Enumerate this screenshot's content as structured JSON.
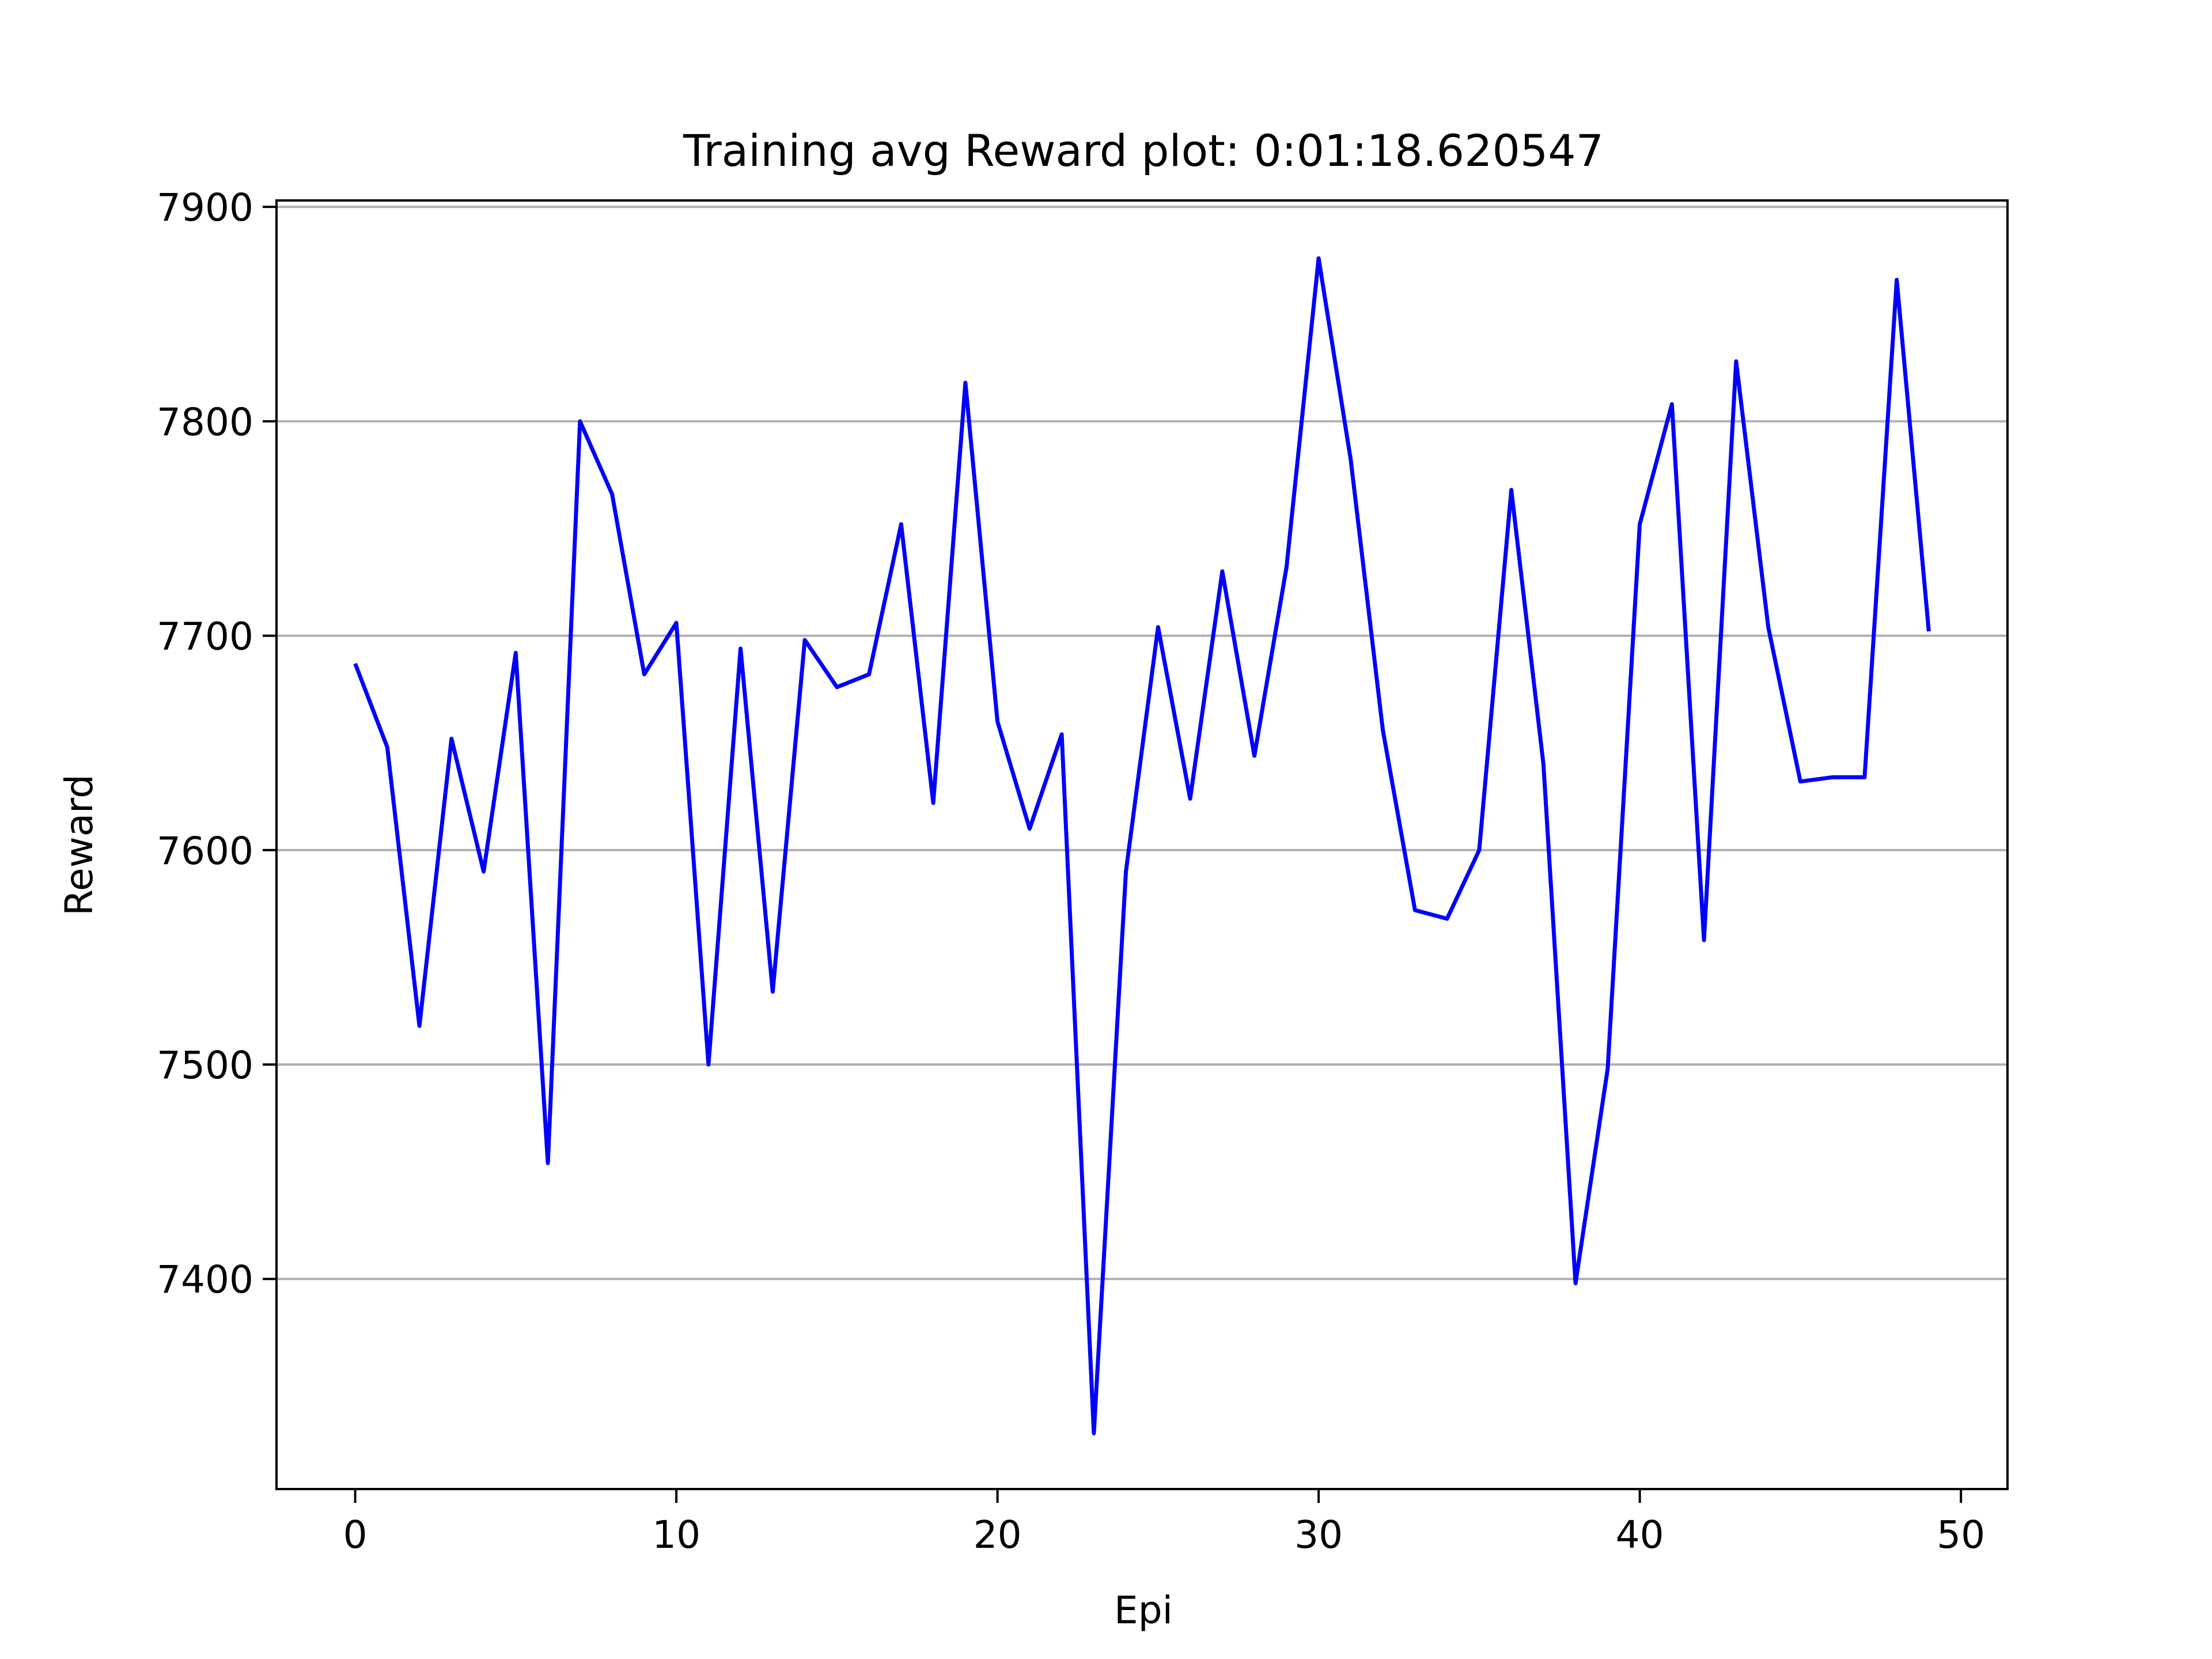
{
  "chart_data": {
    "type": "line",
    "title": "Training avg Reward plot: 0:01:18.620547",
    "xlabel": "Epi",
    "ylabel": "Reward",
    "xlim": [
      -2.45,
      51.45
    ],
    "ylim": [
      7302,
      7903
    ],
    "xticks": [
      0,
      10,
      20,
      30,
      40,
      50
    ],
    "yticks": [
      7400,
      7500,
      7600,
      7700,
      7800,
      7900
    ],
    "grid": "y-only",
    "line_color": "#0000ff",
    "grid_color": "#b0b0b0",
    "series": [
      {
        "x": [
          0,
          1,
          2,
          3,
          4,
          5,
          6,
          7,
          8,
          9,
          10,
          11,
          12,
          13,
          14,
          15,
          16,
          17,
          18,
          19,
          20,
          21,
          22,
          23,
          24,
          25,
          26,
          27,
          28,
          29,
          30,
          31,
          32,
          33,
          34,
          35,
          36,
          37,
          38,
          39,
          40,
          41,
          42,
          43,
          44,
          45,
          46,
          47,
          48,
          49
        ],
        "values": [
          7687,
          7648,
          7518,
          7652,
          7590,
          7692,
          7454,
          7800,
          7766,
          7682,
          7706,
          7500,
          7694,
          7534,
          7698,
          7676,
          7682,
          7752,
          7622,
          7818,
          7660,
          7610,
          7654,
          7328,
          7590,
          7704,
          7624,
          7730,
          7644,
          7732,
          7876,
          7782,
          7656,
          7572,
          7568,
          7600,
          7768,
          7640,
          7398,
          7498,
          7752,
          7808,
          7558,
          7828,
          7704,
          7632,
          7634,
          7634,
          7866,
          7702
        ]
      }
    ]
  }
}
